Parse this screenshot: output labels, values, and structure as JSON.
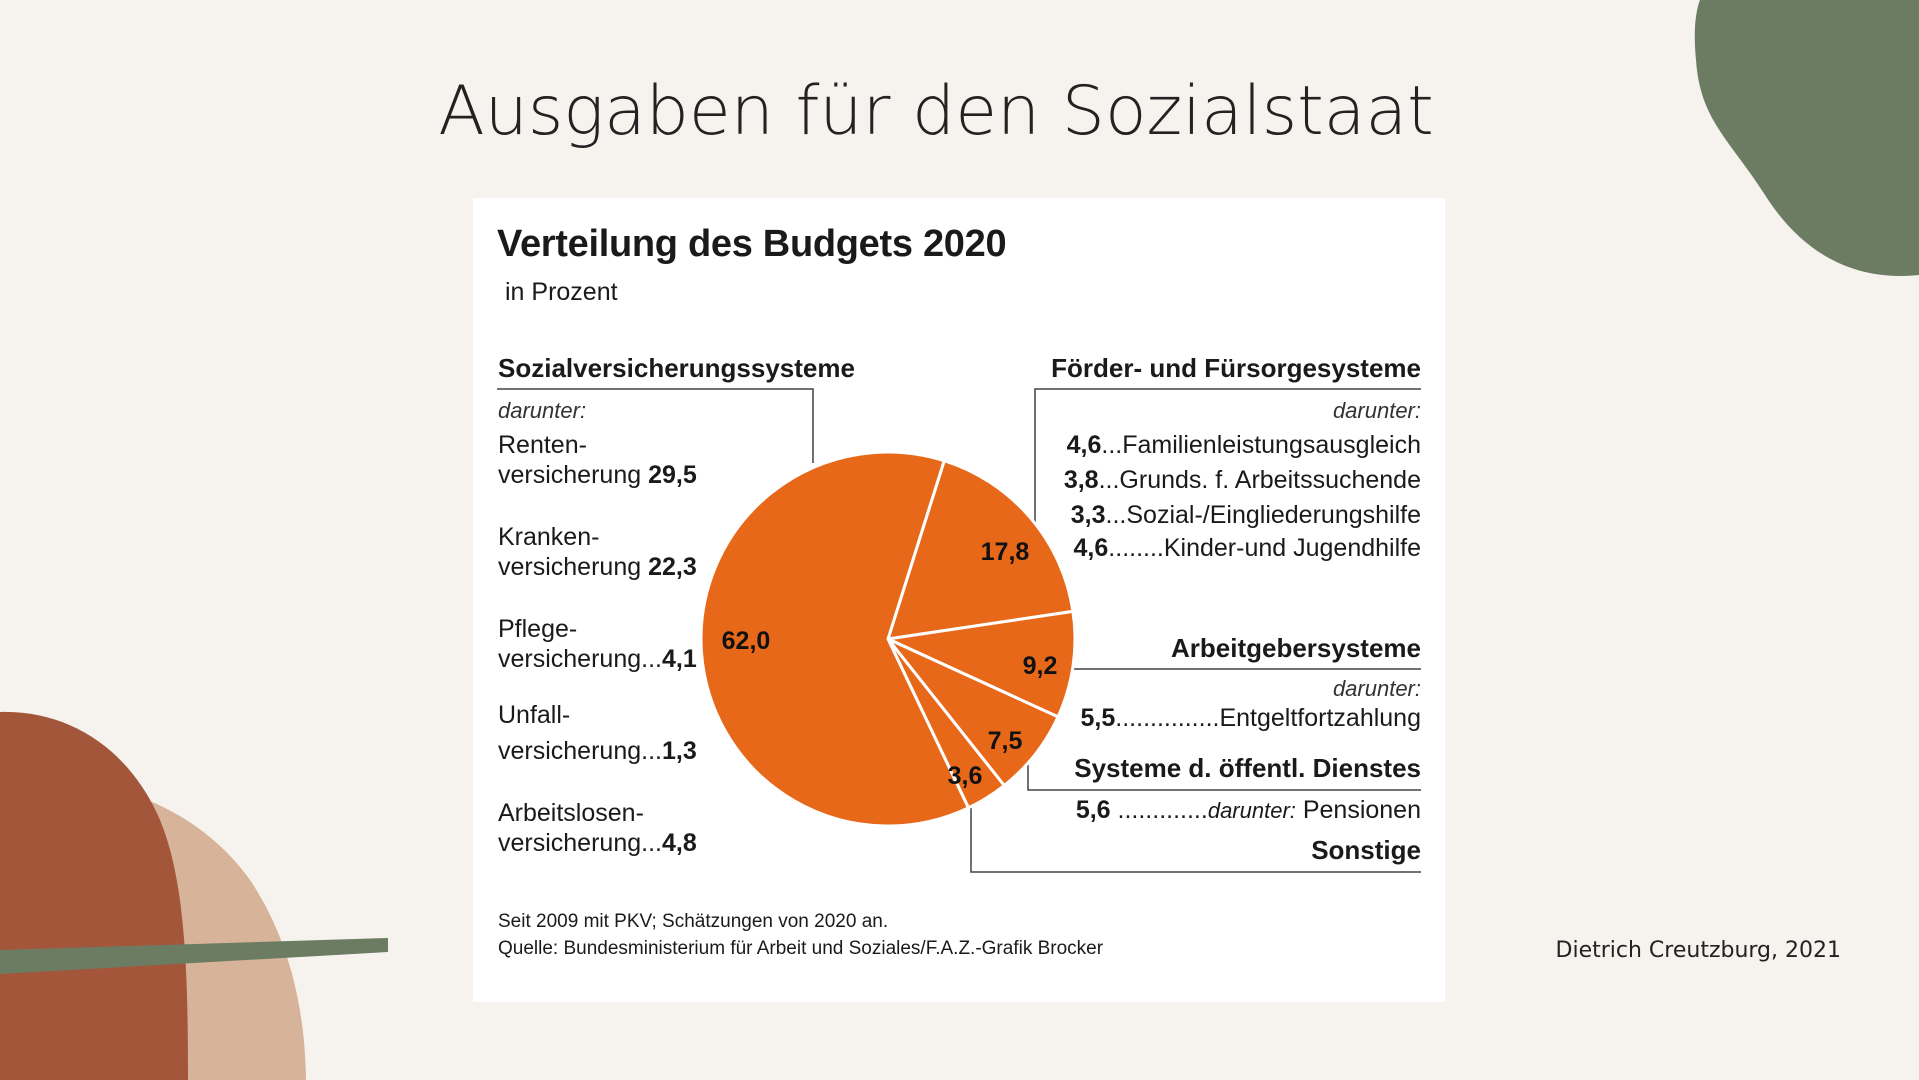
{
  "slide": {
    "title": "Ausgaben für den Sozialstaat",
    "credit": "Dietrich Creutzburg, 2021"
  },
  "colors": {
    "pie": "#e8681a",
    "deco_green": "#6b7c62",
    "deco_rust": "#a4563b",
    "deco_tan": "#d6b399",
    "background": "#f6f3ef"
  },
  "chart": {
    "title": "Verteilung des Budgets 2020",
    "subtitle": "in Prozent",
    "darunter": "darunter:",
    "left_group": {
      "heading": "Sozialversicherungssysteme",
      "items": [
        {
          "line1": "Renten-",
          "line2": "versicherung",
          "value": "29,5"
        },
        {
          "line1": "Kranken-",
          "line2": "versicherung",
          "value": "22,3"
        },
        {
          "line1": "Pflege-",
          "line2": "versicherung...",
          "value": "4,1"
        },
        {
          "line1": "Unfall-",
          "line2": "versicherung...",
          "value": "1,3"
        },
        {
          "line1": "Arbeitslosen-",
          "line2": "versicherung...",
          "value": "4,8"
        }
      ]
    },
    "foerder_group": {
      "heading": "Förder- und Fürsorgesysteme",
      "items": [
        {
          "value": "4,6",
          "text": "...Familienleistungsausgleich"
        },
        {
          "value": "3,8",
          "text": "...Grunds. f. Arbeitssuchende"
        },
        {
          "value": "3,3",
          "text": "...Sozial-/Eingliederungshilfe"
        },
        {
          "value": "4,6",
          "text": "........Kinder-und Jugendhilfe"
        }
      ]
    },
    "arbeitgeber_group": {
      "heading": "Arbeitgebersysteme",
      "item": {
        "value": "5,5",
        "text": "...............Entgeltfortzahlung"
      }
    },
    "dienst_group": {
      "heading": "Systeme d. öffentl. Dienstes",
      "item": {
        "value": "5,6",
        "dots": " .............",
        "darunter": "darunter:",
        "text": " Pensionen"
      }
    },
    "sonstige": "Sonstige",
    "footnote1": "Seit 2009 mit PKV; Schätzungen von 2020 an.",
    "footnote2": "Quelle: Bundesministerium für Arbeit und Soziales/F.A.Z.-Grafik Brocker"
  },
  "chart_data": {
    "type": "pie",
    "title": "Verteilung des Budgets 2020",
    "subtitle": "in Prozent",
    "slices": [
      {
        "label": "Sozialversicherungssysteme",
        "value": 62.0,
        "display": "62,0"
      },
      {
        "label": "Förder- und Fürsorgesysteme",
        "value": 17.8,
        "display": "17,8"
      },
      {
        "label": "Arbeitgebersysteme",
        "value": 9.2,
        "display": "9,2"
      },
      {
        "label": "Systeme d. öffentl. Dienstes",
        "value": 7.5,
        "display": "7,5"
      },
      {
        "label": "Sonstige",
        "value": 3.6,
        "display": "3,6"
      }
    ]
  }
}
